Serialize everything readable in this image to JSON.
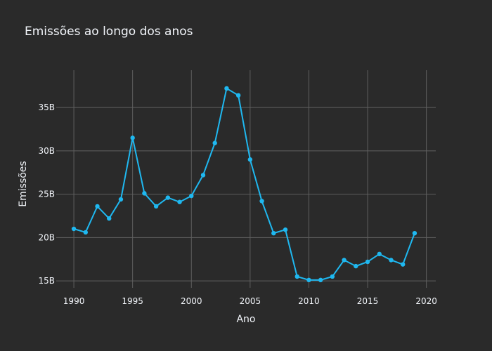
{
  "chart_data": {
    "type": "line",
    "title": "Emissões ao longo dos anos",
    "xlabel": "Ano",
    "ylabel": "Emissões",
    "xlim": [
      1988.5,
      2020.8
    ],
    "ylim": [
      14.2,
      39.3
    ],
    "x_ticks": [
      1990,
      1995,
      2000,
      2005,
      2010,
      2015,
      2020
    ],
    "x_tick_labels": [
      "1990",
      "1995",
      "2000",
      "2005",
      "2010",
      "2015",
      "2020"
    ],
    "y_ticks": [
      15,
      20,
      25,
      30,
      35
    ],
    "y_tick_labels": [
      "15B",
      "20B",
      "25B",
      "30B",
      "35B"
    ],
    "grid": true,
    "series": [
      {
        "color": "#1fb8f0",
        "x": [
          1990,
          1991,
          1992,
          1993,
          1994,
          1995,
          1996,
          1997,
          1998,
          1999,
          2000,
          2001,
          2002,
          2003,
          2004,
          2005,
          2006,
          2007,
          2008,
          2009,
          2010,
          2011,
          2012,
          2013,
          2014,
          2015,
          2016,
          2017,
          2018,
          2019
        ],
        "values": [
          21.0,
          20.6,
          23.6,
          22.2,
          24.4,
          31.5,
          25.1,
          23.6,
          24.6,
          24.1,
          24.8,
          27.2,
          30.9,
          37.2,
          36.4,
          29.0,
          24.2,
          20.5,
          20.9,
          15.5,
          15.1,
          15.1,
          15.5,
          17.4,
          16.7,
          17.2,
          18.1,
          17.4,
          16.9,
          20.5
        ]
      }
    ]
  }
}
